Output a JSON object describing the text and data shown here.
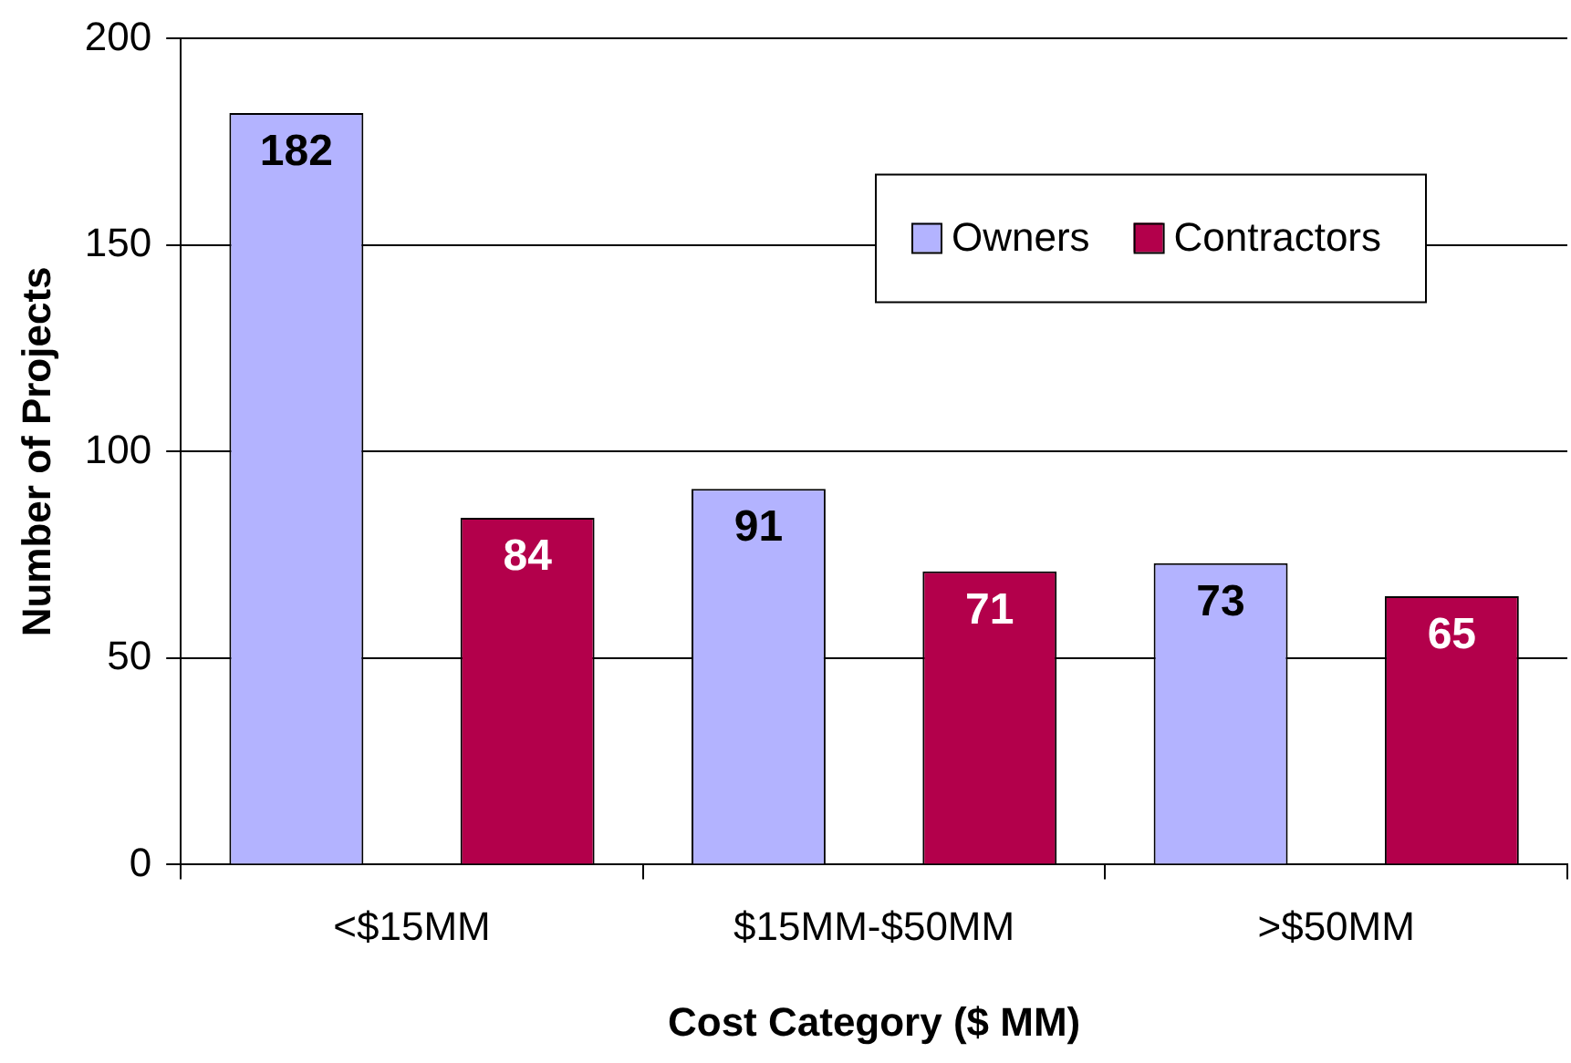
{
  "chart_data": {
    "type": "bar",
    "xlabel": "Cost Category ($ MM)",
    "ylabel": "Number of Projects",
    "categories": [
      "<$15MM",
      "$15MM-$50MM",
      ">$50MM"
    ],
    "series": [
      {
        "name": "Owners",
        "color": "#b3b3ff",
        "values": [
          182,
          91,
          73
        ]
      },
      {
        "name": "Contractors",
        "color": "#b3004b",
        "values": [
          84,
          71,
          65
        ]
      }
    ],
    "ylim": [
      0,
      200
    ],
    "yticks": [
      0,
      50,
      100,
      150,
      200
    ],
    "grid": "y",
    "legend": "top right",
    "data_labels": true
  }
}
